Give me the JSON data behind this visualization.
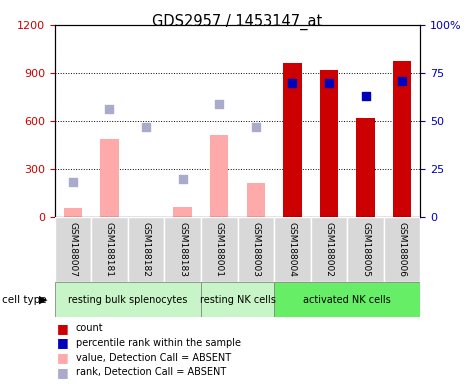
{
  "title": "GDS2957 / 1453147_at",
  "samples": [
    "GSM188007",
    "GSM188181",
    "GSM188182",
    "GSM188183",
    "GSM188001",
    "GSM188003",
    "GSM188004",
    "GSM188002",
    "GSM188005",
    "GSM188006"
  ],
  "cell_types": [
    {
      "label": "resting bulk splenocytes",
      "start": 0,
      "end": 3,
      "color": "#c8f5c8"
    },
    {
      "label": "resting NK cells",
      "start": 4,
      "end": 5,
      "color": "#c8f5c8"
    },
    {
      "label": "activated NK cells",
      "start": 6,
      "end": 9,
      "color": "#66ee66"
    }
  ],
  "count_values": [
    null,
    null,
    null,
    null,
    null,
    null,
    960,
    920,
    620,
    975
  ],
  "count_absent_values": [
    55,
    490,
    null,
    65,
    510,
    210,
    null,
    null,
    null,
    null
  ],
  "percentile_values": [
    null,
    null,
    null,
    null,
    null,
    null,
    70,
    70,
    63,
    71
  ],
  "percentile_absent_values": [
    18,
    56,
    47,
    20,
    59,
    47,
    null,
    null,
    null,
    null
  ],
  "ylim_left": [
    0,
    1200
  ],
  "ylim_right": [
    0,
    100
  ],
  "yticks_left": [
    0,
    300,
    600,
    900,
    1200
  ],
  "yticks_right": [
    0,
    25,
    50,
    75,
    100
  ],
  "count_color": "#cc0000",
  "count_absent_color": "#ffaaaa",
  "percentile_color": "#0000bb",
  "percentile_absent_color": "#aaaacc",
  "bar_width": 0.5,
  "background_color": "#ffffff",
  "plot_bg": "#ffffff",
  "left_label_color": "#cc0000",
  "right_label_color": "#0000bb"
}
